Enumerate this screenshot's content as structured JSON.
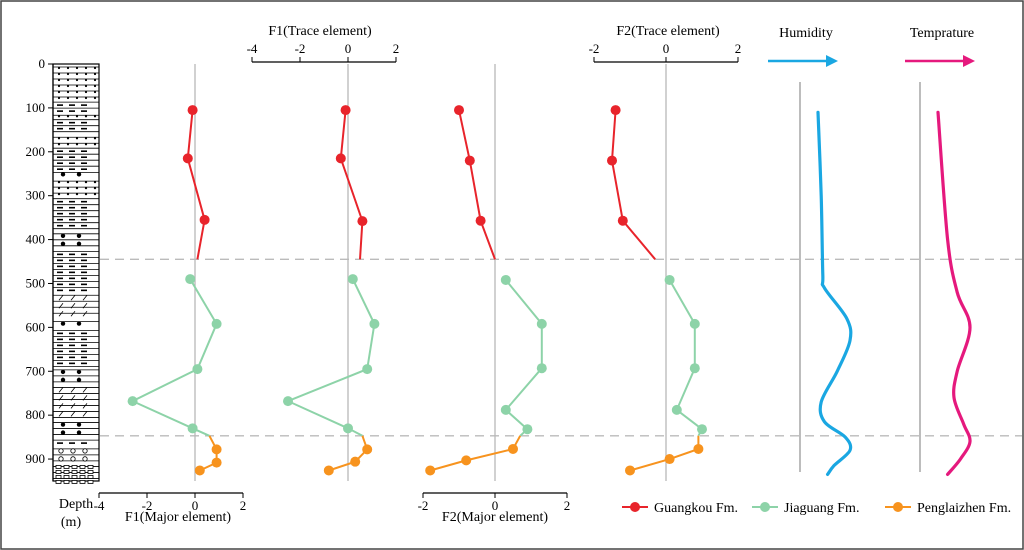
{
  "chart_data": {
    "type": "line",
    "depth_axis": {
      "label_top": "Depth",
      "label_bottom": "(m)",
      "ylim": [
        0,
        950
      ],
      "ticks": [
        0,
        100,
        200,
        300,
        400,
        500,
        600,
        700,
        800,
        900
      ]
    },
    "boundaries_depth": [
      445,
      847
    ],
    "panels": [
      {
        "id": "f1_major",
        "title": "F1(Major element)",
        "title_position": "bottom",
        "xlim": [
          -4,
          2
        ],
        "ticks": [
          -4,
          -2,
          0,
          2
        ],
        "tick_labels": [
          "-4",
          "-2",
          "0",
          "2"
        ],
        "series": [
          {
            "name": "Guangkou Fm.",
            "color": "#e8242b",
            "points": [
              [
                -0.1,
                105
              ],
              [
                -0.3,
                215
              ],
              [
                0.4,
                355
              ],
              [
                0.1,
                445
              ]
            ]
          },
          {
            "name": "Jiaguang Fm.",
            "color": "#8dd3a8",
            "points": [
              [
                -0.2,
                490
              ],
              [
                0.9,
                592
              ],
              [
                0.1,
                695
              ],
              [
                -2.6,
                768
              ],
              [
                -0.1,
                830
              ],
              [
                0.6,
                847
              ]
            ]
          },
          {
            "name": "Penglaizhen Fm.",
            "color": "#f7931e",
            "points": [
              [
                0.6,
                847
              ],
              [
                0.9,
                878
              ],
              [
                0.9,
                908
              ],
              [
                0.2,
                926
              ]
            ]
          }
        ]
      },
      {
        "id": "f1_trace",
        "title": "F1(Trace element)",
        "title_position": "top",
        "xlim": [
          -4,
          2
        ],
        "ticks": [
          -4,
          -2,
          0,
          2
        ],
        "tick_labels": [
          "-4",
          "-2",
          "0",
          "2"
        ],
        "series": [
          {
            "name": "Guangkou Fm.",
            "color": "#e8242b",
            "points": [
              [
                -0.1,
                105
              ],
              [
                -0.3,
                215
              ],
              [
                0.6,
                358
              ],
              [
                0.5,
                445
              ]
            ]
          },
          {
            "name": "Jiaguang Fm.",
            "color": "#8dd3a8",
            "points": [
              [
                0.2,
                490
              ],
              [
                1.1,
                592
              ],
              [
                0.8,
                695
              ],
              [
                -2.5,
                768
              ],
              [
                0.0,
                830
              ],
              [
                0.6,
                847
              ]
            ]
          },
          {
            "name": "Penglaizhen Fm.",
            "color": "#f7931e",
            "points": [
              [
                0.6,
                847
              ],
              [
                0.8,
                878
              ],
              [
                0.3,
                906
              ],
              [
                -0.8,
                926
              ]
            ]
          }
        ]
      },
      {
        "id": "f2_major",
        "title": "F2(Major element)",
        "title_position": "bottom",
        "xlim": [
          -2,
          2
        ],
        "ticks": [
          -2,
          0,
          2
        ],
        "tick_labels": [
          "-2",
          "0",
          "2"
        ],
        "series": [
          {
            "name": "Guangkou Fm.",
            "color": "#e8242b",
            "points": [
              [
                -1.0,
                105
              ],
              [
                -0.7,
                220
              ],
              [
                -0.4,
                357
              ],
              [
                0.0,
                445
              ]
            ]
          },
          {
            "name": "Jiaguang Fm.",
            "color": "#8dd3a8",
            "points": [
              [
                0.3,
                492
              ],
              [
                1.3,
                592
              ],
              [
                1.3,
                693
              ],
              [
                0.3,
                788
              ],
              [
                0.9,
                832
              ],
              [
                0.7,
                847
              ]
            ]
          },
          {
            "name": "Penglaizhen Fm.",
            "color": "#f7931e",
            "points": [
              [
                0.7,
                847
              ],
              [
                0.5,
                877
              ],
              [
                -0.8,
                903
              ],
              [
                -1.8,
                926
              ]
            ]
          }
        ]
      },
      {
        "id": "f2_trace",
        "title": "F2(Trace element)",
        "title_position": "top",
        "xlim": [
          -2,
          2
        ],
        "ticks": [
          -2,
          0,
          2
        ],
        "tick_labels": [
          "-2",
          "0",
          "2"
        ],
        "series": [
          {
            "name": "Guangkou Fm.",
            "color": "#e8242b",
            "points": [
              [
                -1.4,
                105
              ],
              [
                -1.5,
                220
              ],
              [
                -1.2,
                357
              ],
              [
                -0.3,
                445
              ]
            ]
          },
          {
            "name": "Jiaguang Fm.",
            "color": "#8dd3a8",
            "points": [
              [
                0.1,
                492
              ],
              [
                0.8,
                592
              ],
              [
                0.8,
                693
              ],
              [
                0.3,
                788
              ],
              [
                1.0,
                832
              ],
              [
                0.9,
                847
              ]
            ]
          },
          {
            "name": "Penglaizhen Fm.",
            "color": "#f7931e",
            "points": [
              [
                0.9,
                847
              ],
              [
                0.9,
                877
              ],
              [
                0.1,
                900
              ],
              [
                -1.0,
                926
              ]
            ]
          }
        ]
      }
    ],
    "trends": [
      {
        "id": "humidity",
        "title": "Humidity",
        "color": "#1aa7e2",
        "curve": [
          [
            0.0,
            110
          ],
          [
            0.1,
            300
          ],
          [
            0.15,
            480
          ],
          [
            0.2,
            510
          ],
          [
            0.9,
            580
          ],
          [
            1.0,
            630
          ],
          [
            0.6,
            700
          ],
          [
            0.1,
            770
          ],
          [
            0.2,
            815
          ],
          [
            0.85,
            850
          ],
          [
            1.0,
            880
          ],
          [
            0.5,
            915
          ],
          [
            0.3,
            935
          ]
        ]
      },
      {
        "id": "temperature",
        "title": "Temprature",
        "color": "#e5197d",
        "curve": [
          [
            0.0,
            110
          ],
          [
            0.3,
            400
          ],
          [
            0.6,
            520
          ],
          [
            1.0,
            600
          ],
          [
            0.6,
            700
          ],
          [
            0.5,
            760
          ],
          [
            0.8,
            820
          ],
          [
            1.0,
            860
          ],
          [
            0.7,
            900
          ],
          [
            0.3,
            935
          ]
        ]
      }
    ],
    "lithology": {
      "boxes": [
        {
          "from": 0,
          "to": 80,
          "symbol": "dots"
        },
        {
          "from": 80,
          "to": 110,
          "symbol": "dash"
        },
        {
          "from": 110,
          "to": 120,
          "symbol": "dots"
        },
        {
          "from": 120,
          "to": 160,
          "symbol": "dash"
        },
        {
          "from": 160,
          "to": 185,
          "symbol": "dots"
        },
        {
          "from": 185,
          "to": 240,
          "symbol": "dash"
        },
        {
          "from": 240,
          "to": 260,
          "symbol": "bigdot"
        },
        {
          "from": 260,
          "to": 300,
          "symbol": "dots"
        },
        {
          "from": 300,
          "to": 380,
          "symbol": "dash"
        },
        {
          "from": 380,
          "to": 420,
          "symbol": "bigdot"
        },
        {
          "from": 420,
          "to": 520,
          "symbol": "dash"
        },
        {
          "from": 520,
          "to": 580,
          "symbol": "slash"
        },
        {
          "from": 580,
          "to": 600,
          "symbol": "bigdot"
        },
        {
          "from": 600,
          "to": 690,
          "symbol": "dash"
        },
        {
          "from": 690,
          "to": 730,
          "symbol": "bigdot"
        },
        {
          "from": 730,
          "to": 810,
          "symbol": "slash"
        },
        {
          "from": 810,
          "to": 850,
          "symbol": "bigdot"
        },
        {
          "from": 850,
          "to": 870,
          "symbol": "dash"
        },
        {
          "from": 870,
          "to": 910,
          "symbol": "circle"
        },
        {
          "from": 910,
          "to": 950,
          "symbol": "grid"
        }
      ]
    },
    "legend": [
      {
        "name": "Guangkou Fm.",
        "color": "#e8242b"
      },
      {
        "name": "Jiaguang Fm.",
        "color": "#8dd3a8"
      },
      {
        "name": "Penglaizhen  Fm.",
        "color": "#f7931e"
      }
    ]
  }
}
